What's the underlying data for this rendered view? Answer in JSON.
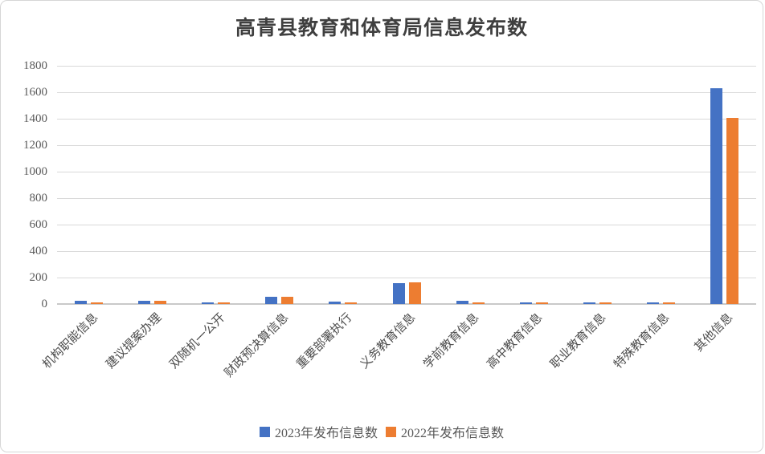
{
  "window": {
    "background": "#ffffff",
    "border_color": "#d6d6d6"
  },
  "chart_data": {
    "type": "bar",
    "title": "高青县教育和体育局信息发布数",
    "xlabel": "",
    "ylabel": "",
    "categories": [
      "机构职能信息",
      "建议提案办理",
      "双随机一公开",
      "财政预决算信息",
      "重要部署执行",
      "义务教育信息",
      "学前教育信息",
      "高中教育信息",
      "职业教育信息",
      "特殊教育信息",
      "其他信息"
    ],
    "series": [
      {
        "name": "2023年发布信息数",
        "color": "#4472C4",
        "values": [
          24,
          24,
          15,
          56,
          18,
          160,
          22,
          14,
          12,
          10,
          1630
        ]
      },
      {
        "name": "2022年发布信息数",
        "color": "#ED7D31",
        "values": [
          12,
          22,
          12,
          56,
          15,
          165,
          10,
          12,
          12,
          12,
          1405
        ]
      }
    ],
    "ylim": [
      0,
      1800
    ],
    "yticks": [
      0,
      200,
      400,
      600,
      800,
      1000,
      1200,
      1400,
      1600,
      1800
    ],
    "grid": true,
    "legend_position": "bottom",
    "gridline_color": "#D9D9D9",
    "axis_line_color": "#C9C9C9",
    "tick_label_color": "#595959",
    "title_color": "#3F3F3F"
  }
}
